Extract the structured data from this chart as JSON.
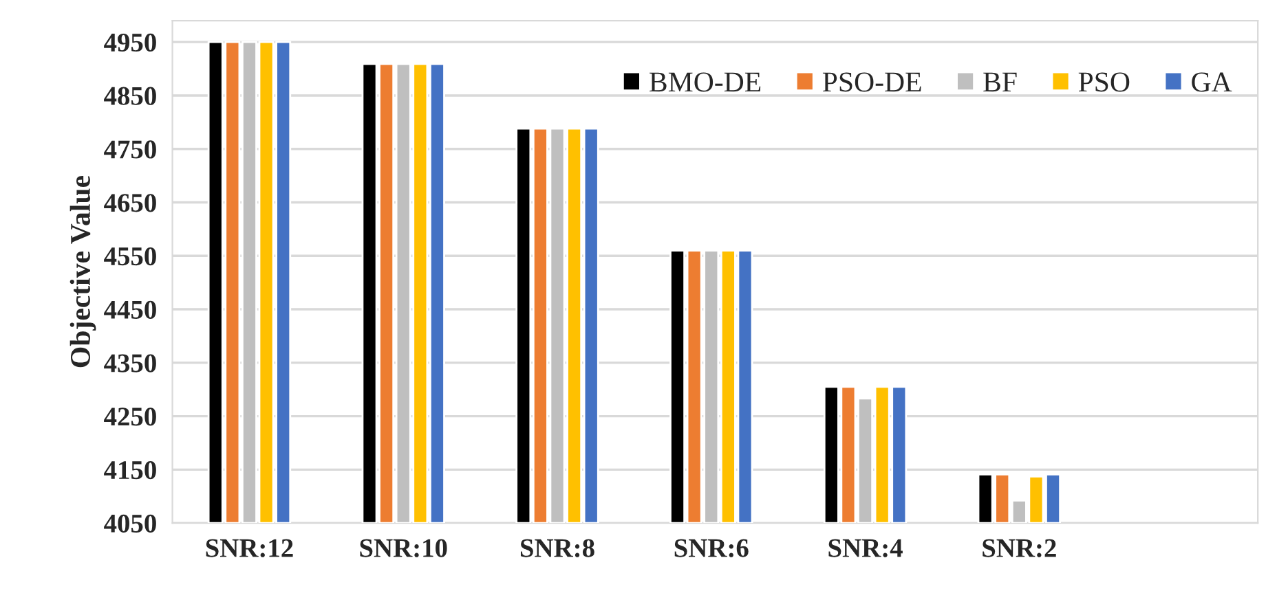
{
  "chart_data": {
    "type": "bar",
    "ylabel": "Objective Value",
    "categories": [
      "SNR:12",
      "SNR:10",
      "SNR:8",
      "SNR:6",
      "SNR:4",
      "SNR:2"
    ],
    "series": [
      {
        "name": "BMO-DE",
        "color": "#000000",
        "values": [
          4950,
          4909,
          4788,
          4560,
          4305,
          4141
        ]
      },
      {
        "name": "PSO-DE",
        "color": "#ed7d31",
        "values": [
          4950,
          4909,
          4788,
          4560,
          4305,
          4141
        ]
      },
      {
        "name": "BF",
        "color": "#bfbfbf",
        "values": [
          4950,
          4909,
          4788,
          4560,
          4283,
          4092
        ]
      },
      {
        "name": "PSO",
        "color": "#ffc000",
        "values": [
          4950,
          4909,
          4788,
          4560,
          4305,
          4137
        ]
      },
      {
        "name": "GA",
        "color": "#4472c4",
        "values": [
          4950,
          4909,
          4788,
          4560,
          4305,
          4141
        ]
      }
    ],
    "ylim": [
      4050,
      4990
    ],
    "yticks": [
      4050,
      4150,
      4250,
      4350,
      4450,
      4550,
      4650,
      4750,
      4850,
      4950
    ],
    "grid": "y",
    "legend": "top right"
  }
}
